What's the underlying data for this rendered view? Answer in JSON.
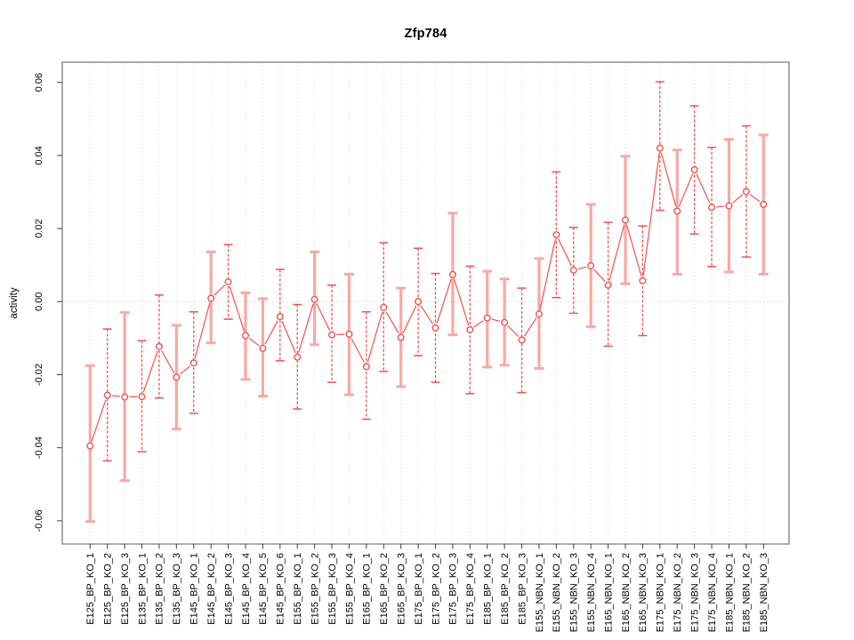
{
  "chart_data": {
    "type": "scatter",
    "title": "Zfp784",
    "xlabel": "",
    "ylabel": "activity",
    "ylim": [
      -0.0663,
      0.0655
    ],
    "yticks": [
      -0.06,
      -0.04,
      -0.02,
      0.0,
      0.02,
      0.04,
      0.06
    ],
    "ytick_labels": [
      "-0.06",
      "-0.04",
      "-0.02",
      "0.00",
      "0.02",
      "0.04",
      "0.06"
    ],
    "grid": "vertical dashed gridline per category; dotted horizontal line at 0",
    "legend": "none",
    "marker": "open-circle",
    "line_between_points": true,
    "points": [
      {
        "label": "E125_BP_KO_1",
        "value": -0.0395,
        "lower": -0.0602,
        "upper": -0.0175,
        "bar_style": "light"
      },
      {
        "label": "E125_BP_KO_2",
        "value": -0.0256,
        "lower": -0.0436,
        "upper": -0.0075,
        "bar_style": "dark"
      },
      {
        "label": "E125_BP_KO_3",
        "value": -0.0261,
        "lower": -0.049,
        "upper": -0.003,
        "bar_style": "light"
      },
      {
        "label": "E135_BP_KO_1",
        "value": -0.026,
        "lower": -0.0411,
        "upper": -0.0107,
        "bar_style": "dark"
      },
      {
        "label": "E135_BP_KO_2",
        "value": -0.0123,
        "lower": -0.0264,
        "upper": 0.0018,
        "bar_style": "dark"
      },
      {
        "label": "E135_BP_KO_3",
        "value": -0.0207,
        "lower": -0.0349,
        "upper": -0.0065,
        "bar_style": "light"
      },
      {
        "label": "E145_BP_KO_1",
        "value": -0.0168,
        "lower": -0.0306,
        "upper": -0.0028,
        "bar_style": "dark"
      },
      {
        "label": "E145_BP_KO_2",
        "value": 0.0009,
        "lower": -0.0113,
        "upper": 0.0136,
        "bar_style": "light"
      },
      {
        "label": "E145_BP_KO_3",
        "value": 0.0054,
        "lower": -0.0048,
        "upper": 0.0156,
        "bar_style": "dark"
      },
      {
        "label": "E145_BP_KO_4",
        "value": -0.0093,
        "lower": -0.0213,
        "upper": 0.0024,
        "bar_style": "light"
      },
      {
        "label": "E145_BP_KO_5",
        "value": -0.0128,
        "lower": -0.0259,
        "upper": 0.0008,
        "bar_style": "light"
      },
      {
        "label": "E145_BP_KO_6",
        "value": -0.0041,
        "lower": -0.0162,
        "upper": 0.0088,
        "bar_style": "dark"
      },
      {
        "label": "E155_BP_KO_1",
        "value": -0.0152,
        "lower": -0.0294,
        "upper": -0.0008,
        "bar_style": "dark"
      },
      {
        "label": "E155_BP_KO_2",
        "value": 0.0006,
        "lower": -0.0118,
        "upper": 0.0136,
        "bar_style": "light"
      },
      {
        "label": "E155_BP_KO_3",
        "value": -0.0091,
        "lower": -0.0221,
        "upper": 0.0045,
        "bar_style": "dark"
      },
      {
        "label": "E155_BP_KO_4",
        "value": -0.0089,
        "lower": -0.0255,
        "upper": 0.0075,
        "bar_style": "light"
      },
      {
        "label": "E165_BP_KO_1",
        "value": -0.0178,
        "lower": -0.0322,
        "upper": -0.0028,
        "bar_style": "dark"
      },
      {
        "label": "E165_BP_KO_2",
        "value": -0.0016,
        "lower": -0.0191,
        "upper": 0.0161,
        "bar_style": "dark"
      },
      {
        "label": "E165_BP_KO_3",
        "value": -0.0098,
        "lower": -0.0233,
        "upper": 0.0037,
        "bar_style": "light"
      },
      {
        "label": "E175_BP_KO_1",
        "value": 0.0,
        "lower": -0.0148,
        "upper": 0.0146,
        "bar_style": "dark"
      },
      {
        "label": "E175_BP_KO_2",
        "value": -0.0072,
        "lower": -0.0221,
        "upper": 0.0077,
        "bar_style": "dark"
      },
      {
        "label": "E175_BP_KO_3",
        "value": 0.0074,
        "lower": -0.0091,
        "upper": 0.0242,
        "bar_style": "light"
      },
      {
        "label": "E175_BP_KO_4",
        "value": -0.0077,
        "lower": -0.0252,
        "upper": 0.0097,
        "bar_style": "dark"
      },
      {
        "label": "E185_BP_KO_1",
        "value": -0.0045,
        "lower": -0.0179,
        "upper": 0.0083,
        "bar_style": "light"
      },
      {
        "label": "E185_BP_KO_2",
        "value": -0.0057,
        "lower": -0.0174,
        "upper": 0.0062,
        "bar_style": "light"
      },
      {
        "label": "E185_BP_KO_3",
        "value": -0.0105,
        "lower": -0.0249,
        "upper": 0.0037,
        "bar_style": "dark"
      },
      {
        "label": "E155_NBN_KO_1",
        "value": -0.0034,
        "lower": -0.0183,
        "upper": 0.0118,
        "bar_style": "light"
      },
      {
        "label": "E155_NBN_KO_2",
        "value": 0.0183,
        "lower": 0.0011,
        "upper": 0.0355,
        "bar_style": "dark"
      },
      {
        "label": "E155_NBN_KO_3",
        "value": 0.0086,
        "lower": -0.0032,
        "upper": 0.0203,
        "bar_style": "dark"
      },
      {
        "label": "E155_NBN_KO_4",
        "value": 0.0098,
        "lower": -0.0069,
        "upper": 0.0266,
        "bar_style": "light"
      },
      {
        "label": "E165_NBN_KO_1",
        "value": 0.0045,
        "lower": -0.0122,
        "upper": 0.0217,
        "bar_style": "dark"
      },
      {
        "label": "E165_NBN_KO_2",
        "value": 0.0223,
        "lower": 0.0049,
        "upper": 0.0398,
        "bar_style": "light"
      },
      {
        "label": "E165_NBN_KO_3",
        "value": 0.0057,
        "lower": -0.0093,
        "upper": 0.0207,
        "bar_style": "dark"
      },
      {
        "label": "E175_NBN_KO_1",
        "value": 0.042,
        "lower": 0.025,
        "upper": 0.0602,
        "bar_style": "dark"
      },
      {
        "label": "E175_NBN_KO_2",
        "value": 0.0248,
        "lower": 0.0075,
        "upper": 0.0415,
        "bar_style": "light"
      },
      {
        "label": "E175_NBN_KO_3",
        "value": 0.0361,
        "lower": 0.0185,
        "upper": 0.0536,
        "bar_style": "dark"
      },
      {
        "label": "E175_NBN_KO_4",
        "value": 0.0258,
        "lower": 0.0096,
        "upper": 0.0422,
        "bar_style": "dark"
      },
      {
        "label": "E185_NBN_KO_1",
        "value": 0.0262,
        "lower": 0.0081,
        "upper": 0.0444,
        "bar_style": "light"
      },
      {
        "label": "E185_NBN_KO_2",
        "value": 0.0301,
        "lower": 0.0122,
        "upper": 0.0481,
        "bar_style": "dark"
      },
      {
        "label": "E185_NBN_KO_3",
        "value": 0.0266,
        "lower": 0.0075,
        "upper": 0.0456,
        "bar_style": "light"
      }
    ]
  },
  "colors": {
    "series_red": "#F0514E",
    "bar_pink": "#FAA8A3",
    "gridline": "#E3E3E3",
    "zero_line": "#D4D4D4",
    "plot_border": "#8F8F8F",
    "axis_tick": "#404040",
    "text": "#000000",
    "background": "#FFFFFF"
  }
}
